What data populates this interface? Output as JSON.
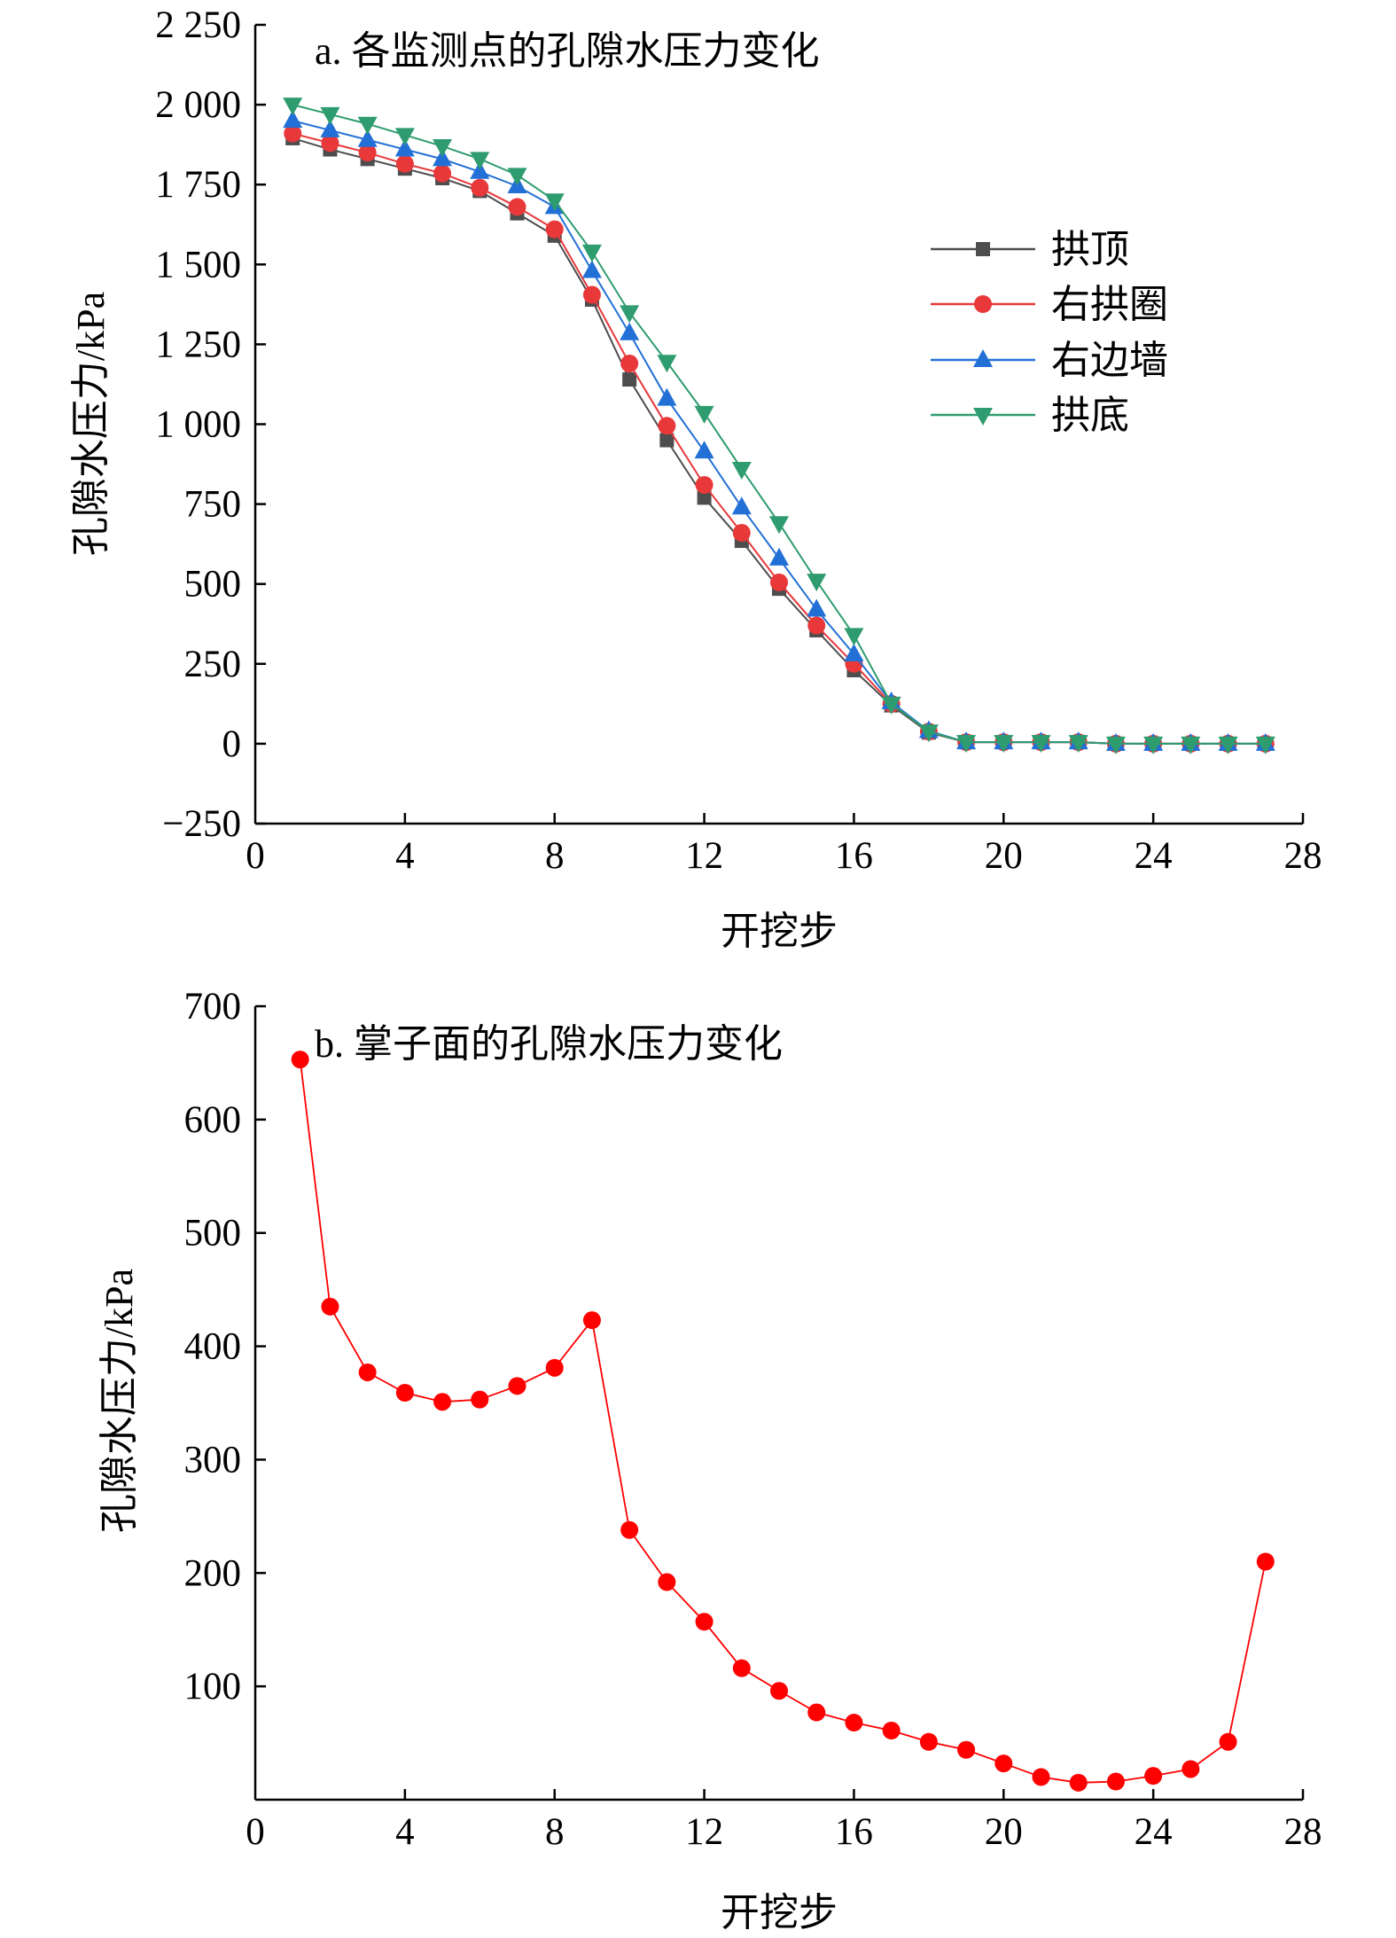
{
  "colors": {
    "arch_top": "#4d4d4d",
    "right_arch_ring": "#e8383a",
    "right_side_wall": "#2270d6",
    "invert": "#2e9c6e",
    "face": "#ff0000"
  },
  "chart_data": [
    {
      "type": "line",
      "title": "a. 各监测点的孔隙水压力变化",
      "xlabel": "开挖步",
      "ylabel": "孔隙水压力/kPa",
      "xlim": [
        0,
        28
      ],
      "ylim": [
        -250,
        2250
      ],
      "xticks": [
        0,
        4,
        8,
        12,
        16,
        20,
        24,
        28
      ],
      "xtick_labels": [
        "0",
        "4",
        "8",
        "12",
        "16",
        "20",
        "24",
        "28"
      ],
      "yticks": [
        -250,
        0,
        250,
        500,
        750,
        1000,
        1250,
        1500,
        1750,
        2000,
        2250
      ],
      "ytick_labels": [
        "−250",
        "0",
        "250",
        "500",
        "750",
        "1 000",
        "1 250",
        "1 500",
        "1 750",
        "2 000",
        "2 250"
      ],
      "x": [
        1,
        2,
        3,
        4,
        5,
        6,
        7,
        8,
        9,
        10,
        11,
        12,
        13,
        14,
        15,
        16,
        17,
        18,
        19,
        20,
        21,
        22,
        23,
        24,
        25,
        26,
        27
      ],
      "legend_position": "right-middle",
      "series": [
        {
          "name": "拱顶",
          "marker": "square",
          "color_key": "arch_top",
          "values": [
            1895,
            1860,
            1830,
            1800,
            1770,
            1730,
            1660,
            1590,
            1390,
            1140,
            950,
            770,
            635,
            485,
            355,
            230,
            120,
            35,
            5,
            5,
            5,
            5,
            0,
            0,
            0,
            0,
            0
          ]
        },
        {
          "name": "右拱圈",
          "marker": "circle",
          "color_key": "right_arch_ring",
          "values": [
            1910,
            1880,
            1850,
            1815,
            1785,
            1740,
            1680,
            1610,
            1405,
            1190,
            995,
            810,
            660,
            505,
            370,
            250,
            125,
            38,
            5,
            5,
            5,
            5,
            0,
            0,
            0,
            0,
            0
          ]
        },
        {
          "name": "右边墙",
          "marker": "triangle-up",
          "color_key": "right_side_wall",
          "values": [
            1950,
            1920,
            1890,
            1860,
            1830,
            1790,
            1745,
            1680,
            1480,
            1285,
            1080,
            915,
            740,
            580,
            420,
            280,
            130,
            40,
            5,
            5,
            5,
            5,
            0,
            0,
            0,
            0,
            0
          ]
        },
        {
          "name": "拱底",
          "marker": "triangle-down",
          "color_key": "invert",
          "values": [
            2000,
            1970,
            1940,
            1905,
            1870,
            1830,
            1780,
            1700,
            1540,
            1350,
            1195,
            1035,
            860,
            690,
            510,
            340,
            125,
            38,
            5,
            5,
            5,
            5,
            0,
            0,
            0,
            0,
            0
          ]
        }
      ]
    },
    {
      "type": "line",
      "title": "b. 掌子面的孔隙水压力变化",
      "xlabel": "开挖步",
      "ylabel": "孔隙水压力/kPa",
      "xlim": [
        0,
        28
      ],
      "ylim": [
        0,
        700
      ],
      "xticks": [
        0,
        4,
        8,
        12,
        16,
        20,
        24,
        28
      ],
      "xtick_labels": [
        "0",
        "4",
        "8",
        "12",
        "16",
        "20",
        "24",
        "28"
      ],
      "yticks": [
        100,
        200,
        300,
        400,
        500,
        600,
        700
      ],
      "ytick_labels": [
        "100",
        "200",
        "300",
        "400",
        "500",
        "600",
        "700"
      ],
      "x": [
        1,
        2,
        3,
        4,
        5,
        6,
        7,
        8,
        9,
        10,
        11,
        12,
        13,
        14,
        15,
        16,
        17,
        18,
        19,
        20,
        21,
        22,
        23,
        24,
        25,
        26,
        27
      ],
      "series": [
        {
          "name": "掌子面",
          "marker": "circle",
          "color_key": "face",
          "values": [
            653,
            435,
            377,
            359,
            351,
            353,
            365,
            381,
            423,
            238,
            192,
            157,
            116,
            96,
            77,
            68,
            61,
            51,
            44,
            32,
            20,
            15,
            16,
            21,
            27,
            51,
            210
          ]
        }
      ]
    }
  ]
}
